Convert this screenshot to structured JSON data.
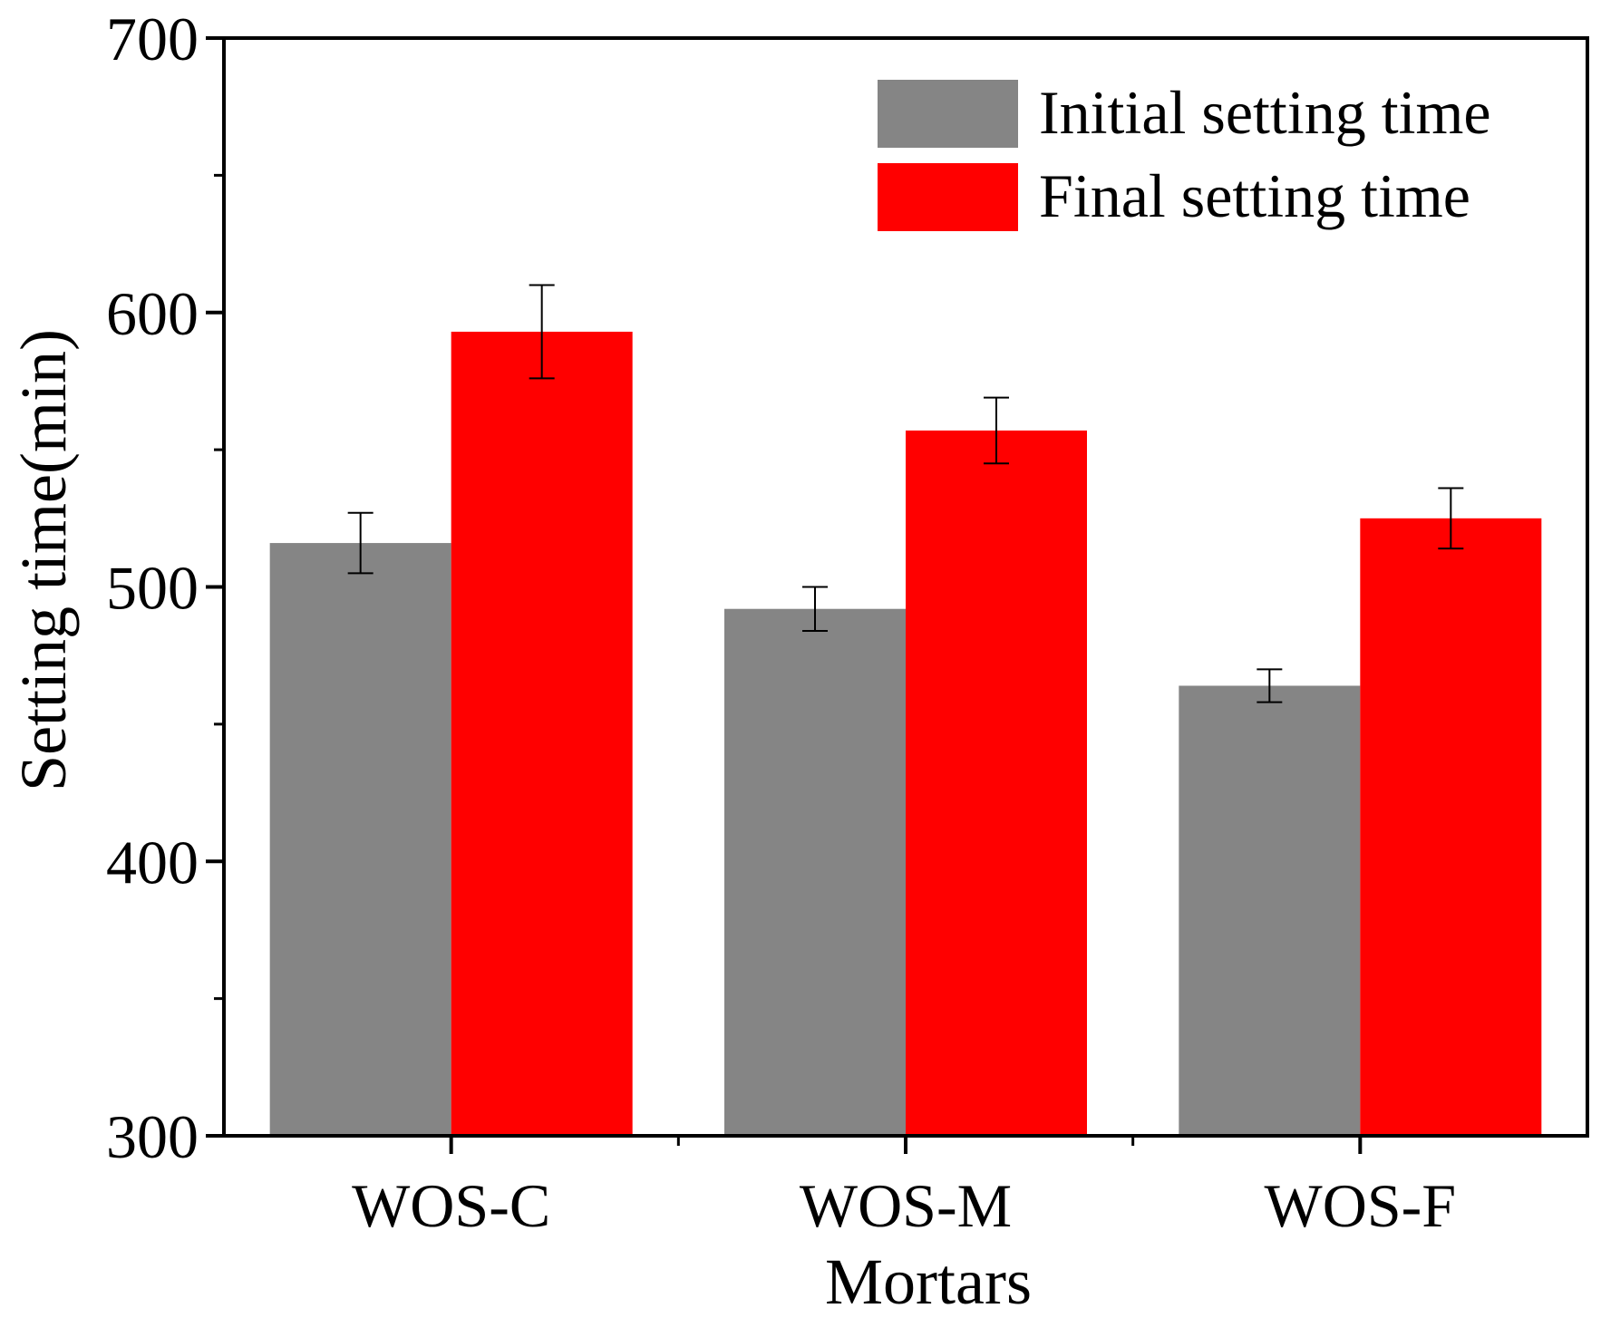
{
  "chart_data": {
    "type": "bar",
    "title": "",
    "xlabel": "Mortars",
    "ylabel": "Setting time(min)",
    "categories": [
      "WOS-C",
      "WOS-M",
      "WOS-F"
    ],
    "ylim": [
      300,
      700
    ],
    "yticks": [
      300,
      400,
      500,
      600,
      700
    ],
    "yticks_minor": [
      350,
      450,
      550,
      650
    ],
    "series": [
      {
        "name": "Initial setting time",
        "color": "#858585",
        "values": [
          516,
          492,
          464
        ],
        "errors": [
          11,
          8,
          6
        ]
      },
      {
        "name": "Final setting time",
        "color": "#ff0000",
        "values": [
          593,
          557,
          525
        ],
        "errors": [
          17,
          12,
          11
        ]
      }
    ],
    "legend_position": "top-right",
    "grid": false
  }
}
